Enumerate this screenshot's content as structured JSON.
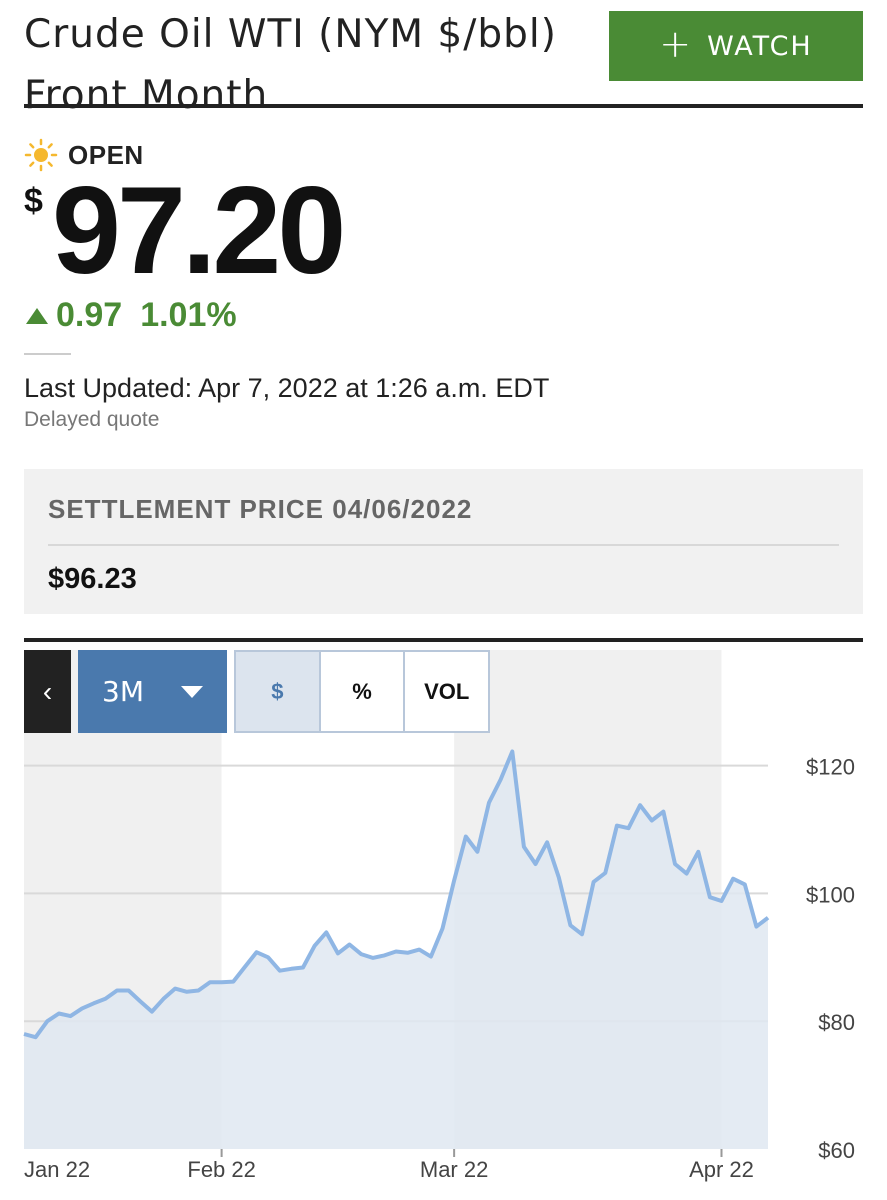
{
  "header": {
    "title": "Crude Oil WTI (NYM $/bbl) Front Month",
    "watch_plus": "+",
    "watch_label": "WATCH"
  },
  "status": {
    "label": "OPEN",
    "icon": "sun-icon"
  },
  "price": {
    "currency": "$",
    "value": "97.20"
  },
  "change": {
    "direction": "up",
    "points": "0.97",
    "percent": "1.01%"
  },
  "updated": {
    "text": "Last Updated: Apr 7, 2022 at 1:26 a.m. EDT",
    "delayed": "Delayed quote"
  },
  "settlement": {
    "label": "SETTLEMENT PRICE 04/06/2022",
    "value": "$96.23"
  },
  "chart_controls": {
    "back": "‹",
    "range": "3M",
    "modes": [
      "$",
      "%",
      "VOL"
    ],
    "active_mode": "$"
  },
  "colors": {
    "accent_green": "#4a8b35",
    "accent_blue": "#4a79ad",
    "line": "#8fb6e4",
    "area": "#dfe8f1"
  },
  "chart_data": {
    "type": "area",
    "y_ticks": [
      "$120",
      "$100",
      "$80",
      "$60"
    ],
    "y_tick_values": [
      120,
      100,
      80,
      60
    ],
    "x_ticks": [
      "Jan 22",
      "Feb 22",
      "Mar 22",
      "Apr 22"
    ],
    "x_tick_index": [
      0,
      17,
      37,
      60
    ],
    "ylim": [
      60,
      124
    ],
    "grid": "horizontal",
    "values": [
      78.0,
      77.5,
      80.0,
      81.2,
      80.8,
      82.0,
      82.8,
      83.5,
      84.8,
      84.8,
      83.1,
      81.5,
      83.5,
      85.1,
      84.6,
      84.8,
      86.1,
      86.1,
      86.2,
      88.5,
      90.8,
      90.0,
      87.9,
      88.2,
      88.4,
      91.8,
      93.9,
      90.6,
      92.0,
      90.5,
      89.9,
      90.3,
      90.9,
      90.7,
      91.2,
      90.1,
      94.5,
      102.0,
      108.9,
      106.5,
      114.2,
      117.8,
      122.2,
      107.3,
      104.6,
      108.0,
      102.5,
      95.0,
      93.6,
      101.8,
      103.2,
      110.6,
      110.2,
      113.8,
      111.4,
      112.8,
      104.6,
      103.1,
      106.5,
      99.4,
      98.8,
      102.3,
      101.4,
      94.8,
      96.2
    ]
  }
}
